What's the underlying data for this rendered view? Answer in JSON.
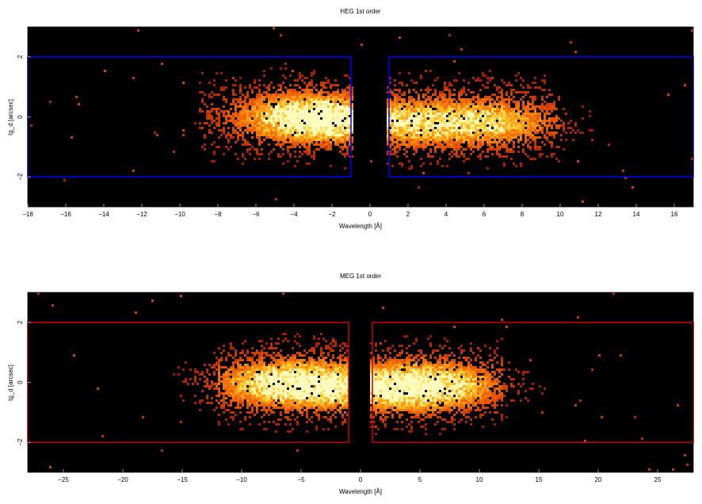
{
  "chart_data": [
    {
      "type": "heatmap",
      "title": "HEG 1st order",
      "xlabel": "Wavelength [Å]",
      "ylabel": "tg_d [arcsec]",
      "xlim": [
        -18,
        17
      ],
      "ylim": [
        -3,
        3
      ],
      "xticks": [
        -18,
        -16,
        -14,
        -12,
        -10,
        -8,
        -6,
        -4,
        -2,
        0,
        2,
        4,
        6,
        8,
        10,
        12,
        14,
        16
      ],
      "yticks": [
        -2,
        0,
        2
      ],
      "box_color": "#0000ff",
      "extraction_regions": [
        {
          "x": [
            -18,
            -1
          ],
          "y": [
            -2,
            2
          ]
        },
        {
          "x": [
            1,
            17
          ],
          "y": [
            -2,
            2
          ]
        }
      ],
      "emission_peaks": [
        {
          "x": -4.0,
          "y": 0.0
        },
        {
          "x": -2.0,
          "y": -0.1
        },
        {
          "x": 2.5,
          "y": -0.2
        },
        {
          "x": 6.5,
          "y": -0.2
        }
      ],
      "density_extent_x": [
        -9,
        10
      ],
      "grid": false,
      "colormap": "hot"
    },
    {
      "type": "heatmap",
      "title": "MEG 1st order",
      "xlabel": "Wavelength [Å]",
      "ylabel": "tg_d [arcsec]",
      "xlim": [
        -28,
        28
      ],
      "ylim": [
        -3,
        3
      ],
      "xticks": [
        -25,
        -20,
        -15,
        -10,
        -5,
        0,
        5,
        10,
        15,
        20,
        25
      ],
      "yticks": [
        -2,
        0,
        2
      ],
      "box_color": "#cc0000",
      "extraction_regions": [
        {
          "x": [
            -28,
            -1
          ],
          "y": [
            -2,
            2
          ]
        },
        {
          "x": [
            1,
            28
          ],
          "y": [
            -2,
            2
          ]
        }
      ],
      "emission_peaks": [
        {
          "x": -7.5,
          "y": 0.0
        },
        {
          "x": -3.5,
          "y": -0.1
        },
        {
          "x": 3.0,
          "y": -0.2
        },
        {
          "x": 7.0,
          "y": -0.1
        }
      ],
      "density_extent_x": [
        -12,
        12
      ],
      "grid": false,
      "colormap": "hot"
    }
  ]
}
